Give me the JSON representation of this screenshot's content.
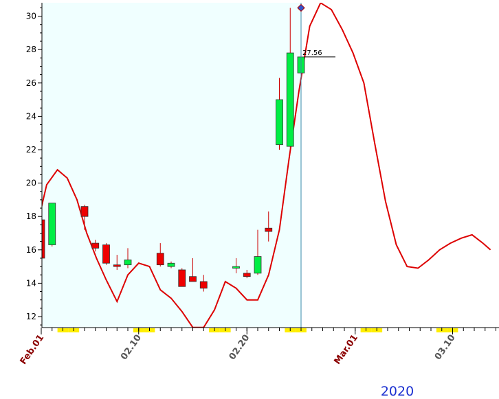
{
  "chart_data": {
    "type": "candlestick",
    "year_label": "2020",
    "ylim": [
      11.3,
      30.8
    ],
    "y_ticks": [
      12,
      14,
      16,
      18,
      20,
      22,
      24,
      26,
      28,
      30
    ],
    "x_tick_labels": [
      {
        "label": "Feb.01",
        "day": 0,
        "bold": true
      },
      {
        "label": "02.10",
        "day": 9,
        "bold": false
      },
      {
        "label": "02.20",
        "day": 19,
        "bold": false
      },
      {
        "label": "Mar.01",
        "day": 29,
        "bold": true
      },
      {
        "label": "03.10",
        "day": 38,
        "bold": false
      }
    ],
    "weekend_days": [
      2,
      3,
      9,
      10,
      16,
      17,
      23,
      24,
      30,
      31,
      37,
      38
    ],
    "candles": [
      {
        "day": 0,
        "open": 17.8,
        "high": 17.9,
        "low": 15.5,
        "close": 15.5
      },
      {
        "day": 1,
        "open": 16.3,
        "high": 18.8,
        "low": 16.2,
        "close": 18.8
      },
      {
        "day": 4,
        "open": 18.6,
        "high": 18.7,
        "low": 17.2,
        "close": 18.0
      },
      {
        "day": 5,
        "open": 16.4,
        "high": 16.6,
        "low": 15.9,
        "close": 16.1
      },
      {
        "day": 6,
        "open": 16.3,
        "high": 16.4,
        "low": 15.1,
        "close": 15.2
      },
      {
        "day": 7,
        "open": 15.1,
        "high": 15.7,
        "low": 14.8,
        "close": 15.0
      },
      {
        "day": 8,
        "open": 15.1,
        "high": 16.1,
        "low": 14.9,
        "close": 15.4
      },
      {
        "day": 11,
        "open": 15.8,
        "high": 16.4,
        "low": 15.0,
        "close": 15.1
      },
      {
        "day": 12,
        "open": 15.0,
        "high": 15.3,
        "low": 14.9,
        "close": 15.2
      },
      {
        "day": 13,
        "open": 14.8,
        "high": 14.9,
        "low": 13.8,
        "close": 13.8
      },
      {
        "day": 14,
        "open": 14.4,
        "high": 15.5,
        "low": 14.2,
        "close": 14.1
      },
      {
        "day": 15,
        "open": 14.1,
        "high": 14.5,
        "low": 13.5,
        "close": 13.7
      },
      {
        "day": 18,
        "open": 14.9,
        "high": 15.5,
        "low": 14.6,
        "close": 15.0
      },
      {
        "day": 19,
        "open": 14.6,
        "high": 14.8,
        "low": 14.3,
        "close": 14.4
      },
      {
        "day": 20,
        "open": 14.6,
        "high": 17.2,
        "low": 14.5,
        "close": 15.6
      },
      {
        "day": 21,
        "open": 17.3,
        "high": 18.3,
        "low": 16.5,
        "close": 17.1
      },
      {
        "day": 22,
        "open": 22.3,
        "high": 26.3,
        "low": 22.0,
        "close": 25.0
      },
      {
        "day": 23,
        "open": 22.2,
        "high": 30.5,
        "low": 22.1,
        "close": 27.8
      },
      {
        "day": 24,
        "open": 26.6,
        "high": 30.5,
        "low": 24.9,
        "close": 27.56
      }
    ],
    "line_series": {
      "color": "#dd0000",
      "points": [
        [
          -0.6,
          17.0
        ],
        [
          0.0,
          18.5
        ],
        [
          0.5,
          19.9
        ],
        [
          1.5,
          20.8
        ],
        [
          2.4,
          20.3
        ],
        [
          3.3,
          19.0
        ],
        [
          4.2,
          17.0
        ],
        [
          5.1,
          15.5
        ],
        [
          6.0,
          14.2
        ],
        [
          7.0,
          12.9
        ],
        [
          8.0,
          14.5
        ],
        [
          9.0,
          15.2
        ],
        [
          10.0,
          15.0
        ],
        [
          11.0,
          13.6
        ],
        [
          12.0,
          13.1
        ],
        [
          13.0,
          12.3
        ],
        [
          14.0,
          11.35
        ],
        [
          15.0,
          11.35
        ],
        [
          16.0,
          12.4
        ],
        [
          17.0,
          14.1
        ],
        [
          18.0,
          13.7
        ],
        [
          19.0,
          13.0
        ],
        [
          20.0,
          13.0
        ],
        [
          21.0,
          14.5
        ],
        [
          22.0,
          17.2
        ],
        [
          22.9,
          21.5
        ],
        [
          23.8,
          25.5
        ],
        [
          24.8,
          29.4
        ],
        [
          25.8,
          30.8
        ],
        [
          26.8,
          30.4
        ],
        [
          27.8,
          29.2
        ],
        [
          28.8,
          27.8
        ],
        [
          29.8,
          26.0
        ],
        [
          30.8,
          22.4
        ],
        [
          31.8,
          18.9
        ],
        [
          32.8,
          16.3
        ],
        [
          33.8,
          15.0
        ],
        [
          34.8,
          14.9
        ],
        [
          35.8,
          15.4
        ],
        [
          36.8,
          16.0
        ],
        [
          37.8,
          16.4
        ],
        [
          38.8,
          16.7
        ],
        [
          39.8,
          16.9
        ],
        [
          40.8,
          16.4
        ],
        [
          41.5,
          16.0
        ]
      ]
    },
    "cursor": {
      "day": 24,
      "marker_value": 30.5,
      "price_label": "27.56"
    },
    "colors": {
      "up": "#00ee44",
      "down": "#ee0000",
      "wick": "#cc0000",
      "shade": "#f0ffff",
      "weekend": "#ffee00",
      "cursor": "#3a8aa8",
      "marker": "#3355cc",
      "bold_label": "#8b0000",
      "normal_label": "#555555"
    }
  }
}
